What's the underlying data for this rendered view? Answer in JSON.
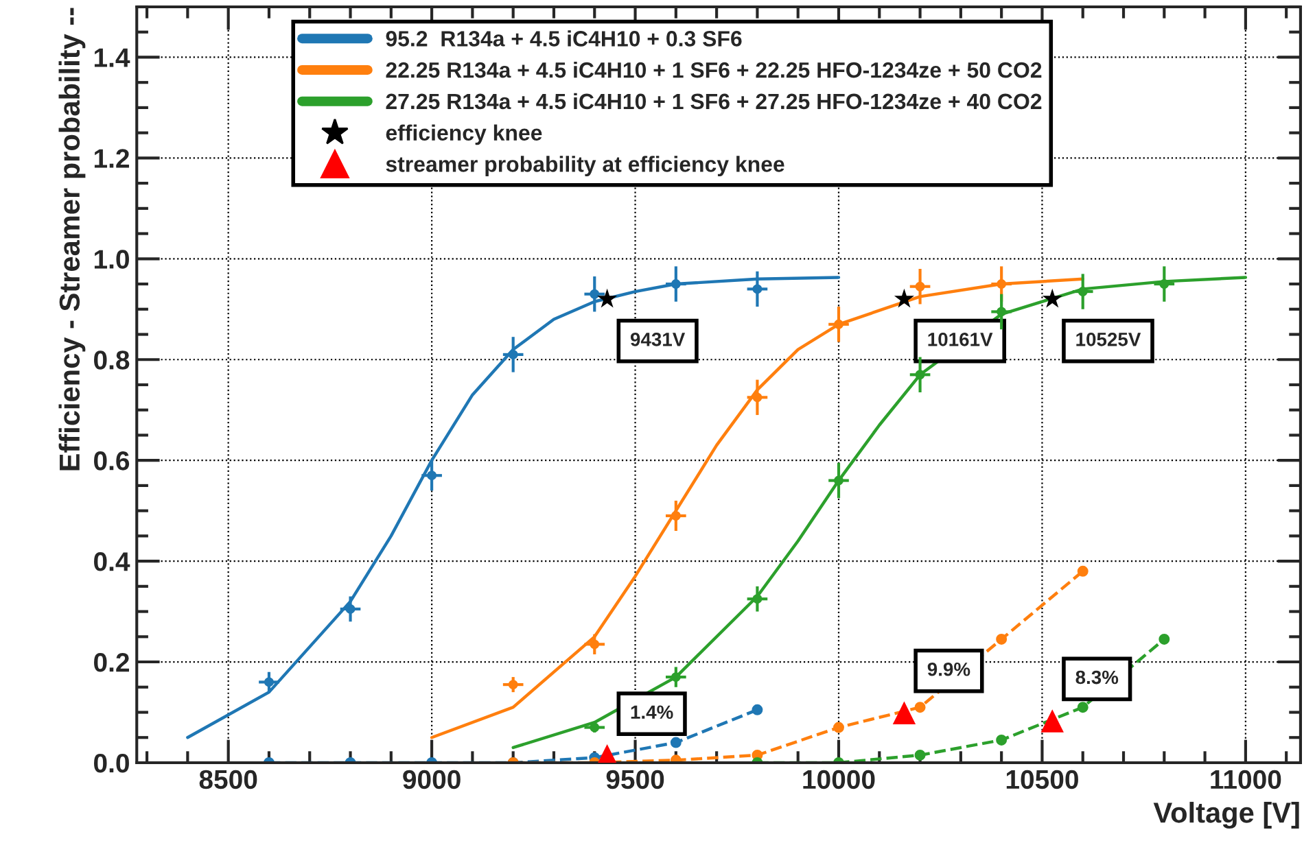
{
  "chart_data": {
    "type": "line",
    "xlabel": "Voltage [V]",
    "ylabel": "Efficiency - Streamer probability --",
    "xlim": [
      8275,
      11135
    ],
    "ylim": [
      0,
      1.5
    ],
    "xticks": [
      8500,
      9000,
      9500,
      10000,
      10500,
      11000
    ],
    "yticks": [
      {
        "value": 0,
        "label": "0.0"
      },
      {
        "value": 0.2,
        "label": "0.2"
      },
      {
        "value": 0.4,
        "label": "0.4"
      },
      {
        "value": 0.6,
        "label": "0.6"
      },
      {
        "value": 0.8,
        "label": "0.8"
      },
      {
        "value": 1.0,
        "label": "1.0"
      },
      {
        "value": 1.2,
        "label": "1.2"
      },
      {
        "value": 1.4,
        "label": "1.4"
      }
    ],
    "grid": true,
    "legend": "top",
    "series": [
      {
        "name": "95.2  R134a + 4.5 iC4H10 + 0.3 SF6",
        "color": "#1f77b4",
        "line_style": "solid",
        "marker": "none",
        "x": [
          8400,
          8600,
          8800,
          8900,
          9000,
          9100,
          9200,
          9300,
          9400,
          9500,
          9600,
          9800,
          10000
        ],
        "values": [
          0.05,
          0.14,
          0.32,
          0.45,
          0.6,
          0.73,
          0.82,
          0.88,
          0.915,
          0.935,
          0.95,
          0.96,
          0.963
        ]
      },
      {
        "name": "22.25 R134a + 4.5 iC4H10 + 1 SF6 + 22.25 HFO-1234ze + 50 CO2",
        "color": "#ff7f0e",
        "line_style": "solid",
        "marker": "none",
        "x": [
          9000,
          9200,
          9400,
          9500,
          9600,
          9700,
          9800,
          9900,
          10000,
          10200,
          10400,
          10600
        ],
        "values": [
          0.05,
          0.11,
          0.25,
          0.37,
          0.5,
          0.63,
          0.74,
          0.82,
          0.87,
          0.925,
          0.95,
          0.96
        ]
      },
      {
        "name": "27.25 R134a + 4.5 iC4H10 + 1 SF6 + 27.25 HFO-1234ze + 40 CO2",
        "color": "#2ca02c",
        "line_style": "solid",
        "marker": "none",
        "x": [
          9200,
          9400,
          9600,
          9800,
          9900,
          10000,
          10100,
          10200,
          10400,
          10600,
          10800,
          11000
        ],
        "values": [
          0.03,
          0.08,
          0.17,
          0.33,
          0.44,
          0.56,
          0.67,
          0.77,
          0.89,
          0.94,
          0.955,
          0.963
        ]
      },
      {
        "type": "scatter",
        "color": "#1f77b4",
        "marker": "circle",
        "x": [
          8600,
          8800,
          9000,
          9200,
          9400,
          9600,
          9800
        ],
        "values": [
          0.16,
          0.305,
          0.57,
          0.81,
          0.93,
          0.95,
          0.94
        ],
        "errors": [
          0.02,
          0.025,
          0.03,
          0.035,
          0.035,
          0.035,
          0.035
        ],
        "xerrors": [
          25,
          25,
          25,
          25,
          25,
          25,
          25
        ]
      },
      {
        "type": "scatter",
        "color": "#ff7f0e",
        "marker": "circle",
        "x": [
          9200,
          9400,
          9600,
          9800,
          10000,
          10200,
          10400
        ],
        "values": [
          0.155,
          0.235,
          0.49,
          0.725,
          0.87,
          0.945,
          0.95
        ],
        "errors": [
          0.015,
          0.02,
          0.03,
          0.035,
          0.035,
          0.035,
          0.035
        ],
        "xerrors": [
          25,
          25,
          25,
          25,
          25,
          25,
          25
        ]
      },
      {
        "type": "scatter",
        "color": "#2ca02c",
        "marker": "circle",
        "x": [
          9400,
          9600,
          9800,
          10000,
          10200,
          10400,
          10600,
          10800
        ],
        "values": [
          0.07,
          0.17,
          0.325,
          0.56,
          0.77,
          0.895,
          0.935,
          0.95
        ],
        "errors": [
          0.01,
          0.02,
          0.025,
          0.035,
          0.035,
          0.035,
          0.035,
          0.035
        ],
        "xerrors": [
          25,
          25,
          25,
          25,
          25,
          25,
          25,
          25
        ]
      },
      {
        "type": "line",
        "color": "#1f77b4",
        "line_style": "dashed",
        "marker": "circle",
        "x": [
          8600,
          8800,
          9000,
          9200,
          9400,
          9600,
          9800
        ],
        "values": [
          0,
          0,
          0,
          0,
          0.01,
          0.04,
          0.105
        ]
      },
      {
        "type": "line",
        "color": "#ff7f0e",
        "line_style": "dashed",
        "marker": "circle",
        "x": [
          9200,
          9400,
          9600,
          9800,
          10000,
          10200,
          10400,
          10600
        ],
        "values": [
          0,
          0,
          0.005,
          0.015,
          0.07,
          0.11,
          0.245,
          0.38
        ]
      },
      {
        "type": "line",
        "color": "#2ca02c",
        "line_style": "dashed",
        "marker": "circle",
        "x": [
          9800,
          10000,
          10200,
          10400,
          10600,
          10800
        ],
        "values": [
          0,
          0,
          0.015,
          0.045,
          0.11,
          0.245
        ]
      },
      {
        "name": "efficiency knee",
        "type": "scatter",
        "color": "#000000",
        "marker": "star",
        "x": [
          9431,
          10161,
          10525
        ],
        "values": [
          0.92,
          0.92,
          0.92
        ]
      },
      {
        "name": "streamer probability at efficiency knee",
        "type": "scatter",
        "color": "#ff0000",
        "marker": "triangle",
        "x": [
          9431,
          10161,
          10525
        ],
        "values": [
          0.014,
          0.099,
          0.083
        ]
      }
    ],
    "annotations": [
      {
        "text": "9431V",
        "x": 9431,
        "y": 0.92
      },
      {
        "text": "10161V",
        "x": 10161,
        "y": 0.92
      },
      {
        "text": "10525V",
        "x": 10525,
        "y": 0.92
      },
      {
        "text": "1.4%",
        "x": 9431,
        "y": 0.014
      },
      {
        "text": "9.9%",
        "x": 10161,
        "y": 0.099
      },
      {
        "text": "8.3%",
        "x": 10525,
        "y": 0.083
      }
    ]
  }
}
